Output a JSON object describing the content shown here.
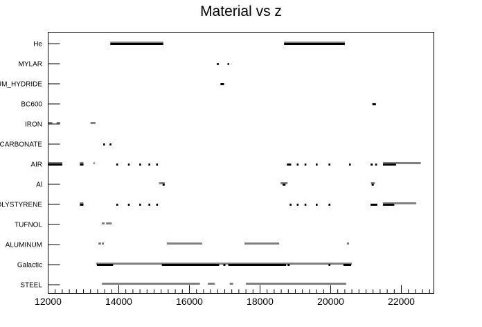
{
  "chart_data": {
    "type": "scatter",
    "title": "Material vs z",
    "xlabel": "",
    "ylabel": "",
    "xlim": [
      12000,
      23100
    ],
    "x_ticks": [
      12000,
      14000,
      16000,
      18000,
      20000,
      22000
    ],
    "x_tick_labels": [
      "12000",
      "14000",
      "16000",
      "18000",
      "20000",
      "22000"
    ],
    "categories": [
      "STEEL",
      "Galactic",
      "ALUMINUM",
      "TUFNOL",
      "POLYSTYRENE",
      "Al",
      "AIR",
      "POLYCARBONATE",
      "IRON",
      "BC600",
      "LITHIUM_HYDRIDE",
      "MYLAR",
      "He"
    ],
    "category_labels": [
      "STEEL",
      "Galactic",
      "ALUMINUM",
      "TUFNOL",
      "OLYSTYRENE",
      "Al",
      "AIR",
      "CARBONATE",
      "IRON",
      "BC600",
      "UM_HYDRIDE",
      "MYLAR",
      "He"
    ],
    "colors": {
      "gray": "#808080",
      "black": "#000000"
    },
    "grid": false,
    "legend": "none",
    "series": [
      {
        "material": "He",
        "color": "gray",
        "segments": [
          [
            13760,
            15260
          ],
          [
            18680,
            20400
          ]
        ]
      },
      {
        "material": "He",
        "color": "black",
        "segments": [
          [
            13760,
            15260
          ],
          [
            18680,
            20400
          ]
        ]
      },
      {
        "material": "MYLAR",
        "color": "black",
        "segments": [
          [
            16780,
            16830
          ],
          [
            17080,
            17120
          ]
        ]
      },
      {
        "material": "LITHIUM_HYDRIDE",
        "color": "black",
        "segments": [
          [
            16880,
            16980
          ]
        ]
      },
      {
        "material": "BC600",
        "color": "black",
        "segments": [
          [
            21180,
            21280
          ]
        ]
      },
      {
        "material": "IRON",
        "color": "gray",
        "segments": [
          [
            12000,
            12120
          ],
          [
            12240,
            12340
          ],
          [
            13200,
            13340
          ]
        ]
      },
      {
        "material": "POLYCARBONATE",
        "color": "black",
        "segments": [
          [
            13560,
            13610
          ],
          [
            13740,
            13790
          ]
        ]
      },
      {
        "material": "AIR",
        "color": "gray",
        "segments": [
          [
            12000,
            12400
          ],
          [
            12900,
            13000
          ],
          [
            13280,
            13320
          ],
          [
            21480,
            22550
          ]
        ]
      },
      {
        "material": "AIR",
        "color": "black",
        "segments": [
          [
            12000,
            12400
          ],
          [
            12900,
            13000
          ],
          [
            13930,
            13980
          ],
          [
            14260,
            14310
          ],
          [
            14580,
            14630
          ],
          [
            14840,
            14890
          ],
          [
            15060,
            15110
          ],
          [
            18760,
            18880
          ],
          [
            19040,
            19090
          ],
          [
            19260,
            19310
          ],
          [
            19580,
            19630
          ],
          [
            19940,
            19990
          ],
          [
            20520,
            20570
          ],
          [
            21130,
            21190
          ],
          [
            21260,
            21310
          ],
          [
            21480,
            21850
          ]
        ]
      },
      {
        "material": "Al",
        "color": "gray",
        "segments": [
          [
            15140,
            15300
          ],
          [
            18580,
            18780
          ],
          [
            21140,
            21250
          ]
        ]
      },
      {
        "material": "Al",
        "color": "black",
        "segments": [
          [
            15240,
            15300
          ],
          [
            18640,
            18720
          ],
          [
            21160,
            21220
          ]
        ]
      },
      {
        "material": "POLYSTYRENE",
        "color": "gray",
        "segments": [
          [
            12900,
            13000
          ],
          [
            21480,
            22420
          ]
        ]
      },
      {
        "material": "POLYSTYRENE",
        "color": "black",
        "segments": [
          [
            12900,
            13000
          ],
          [
            13930,
            13980
          ],
          [
            14260,
            14310
          ],
          [
            14580,
            14630
          ],
          [
            14840,
            14890
          ],
          [
            15060,
            15110
          ],
          [
            18840,
            18890
          ],
          [
            19040,
            19090
          ],
          [
            19260,
            19310
          ],
          [
            19580,
            19630
          ],
          [
            19940,
            19990
          ],
          [
            21130,
            21320
          ],
          [
            21480,
            21800
          ]
        ]
      },
      {
        "material": "TUFNOL",
        "color": "gray",
        "segments": [
          [
            13520,
            13600
          ],
          [
            13640,
            13800
          ]
        ]
      },
      {
        "material": "ALUMINUM",
        "color": "gray",
        "segments": [
          [
            13420,
            13500
          ],
          [
            13520,
            13580
          ],
          [
            15360,
            16360
          ],
          [
            17560,
            18540
          ],
          [
            20460,
            20520
          ]
        ]
      },
      {
        "material": "Galactic",
        "color": "gray",
        "segments": [
          [
            13360,
            20600
          ]
        ]
      },
      {
        "material": "Galactic",
        "color": "black",
        "segments": [
          [
            13380,
            13840
          ],
          [
            15220,
            16840
          ],
          [
            16960,
            17020
          ],
          [
            17100,
            18740
          ],
          [
            18780,
            18840
          ],
          [
            19940,
            19990
          ],
          [
            20360,
            20580
          ]
        ]
      },
      {
        "material": "STEEL",
        "color": "gray",
        "segments": [
          [
            13520,
            16300
          ],
          [
            16520,
            16720
          ],
          [
            17140,
            17240
          ],
          [
            17600,
            20440
          ]
        ]
      }
    ]
  }
}
